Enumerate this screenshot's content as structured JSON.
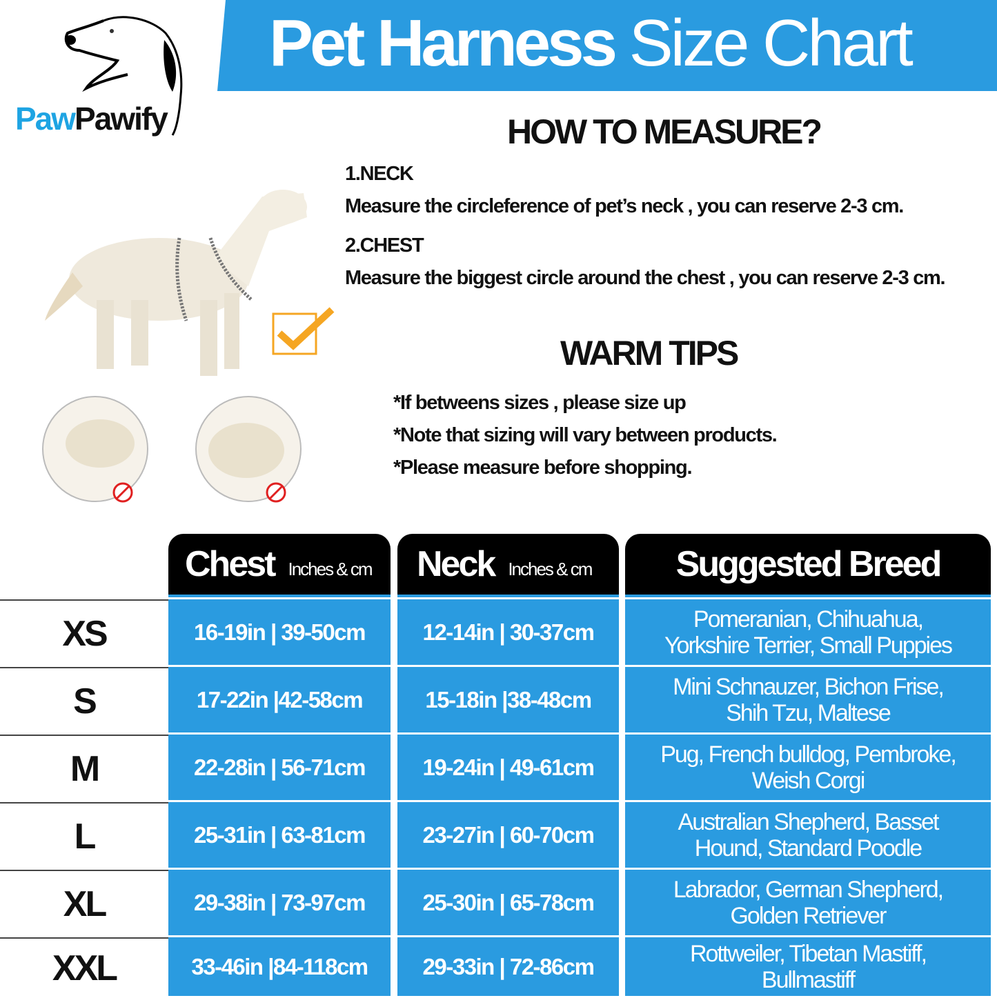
{
  "brand": {
    "logo_part1": "Paw",
    "logo_part2": "Pawify"
  },
  "title": {
    "bold": "Pet Harness",
    "light": "Size Chart"
  },
  "measure": {
    "heading": "HOW TO MEASURE?",
    "neck_label": "1.NECK",
    "neck_text": "Measure the circleference of pet’s neck , you can reserve 2-3 cm.",
    "chest_label": "2.CHEST",
    "chest_text": "Measure the biggest circle around the chest , you can reserve 2-3 cm."
  },
  "tips": {
    "heading": "WARM TIPS",
    "items": [
      "*If betweens sizes , please size up",
      "*Note that sizing will vary between products.",
      "*Please measure before shopping."
    ]
  },
  "colors": {
    "blue": "#2a9be0",
    "check": "#f5a623",
    "prohibit": "#e02020"
  },
  "table": {
    "headers": {
      "chest": "Chest",
      "chest_unit": "Inches & cm",
      "neck": "Neck",
      "neck_unit": "Inches & cm",
      "breed": "Suggested Breed"
    },
    "rows": [
      {
        "size": "XS",
        "chest": "16-19in | 39-50cm",
        "neck": "12-14in | 30-37cm",
        "breed": [
          "Pomeranian, Chihuahua,",
          "Yorkshire Terrier, Small Puppies"
        ]
      },
      {
        "size": "S",
        "chest": "17-22in |42-58cm",
        "neck": "15-18in |38-48cm",
        "breed": [
          "Mini Schnauzer, Bichon Frise,",
          "Shih Tzu, Maltese"
        ]
      },
      {
        "size": "M",
        "chest": "22-28in | 56-71cm",
        "neck": "19-24in | 49-61cm",
        "breed": [
          "Pug, French bulldog, Pembroke,",
          "Weish Corgi"
        ]
      },
      {
        "size": "L",
        "chest": "25-31in | 63-81cm",
        "neck": "23-27in | 60-70cm",
        "breed": [
          "Australian Shepherd, Basset",
          "Hound, Standard Poodle"
        ]
      },
      {
        "size": "XL",
        "chest": "29-38in | 73-97cm",
        "neck": "25-30in | 65-78cm",
        "breed": [
          "Labrador, German Shepherd,",
          "Golden Retriever"
        ]
      },
      {
        "size": "XXL",
        "chest": "33-46in |84-118cm",
        "neck": "29-33in | 72-86cm",
        "breed": [
          "Rottweiler, Tibetan Mastiff,",
          "Bullmastiff"
        ]
      }
    ]
  }
}
